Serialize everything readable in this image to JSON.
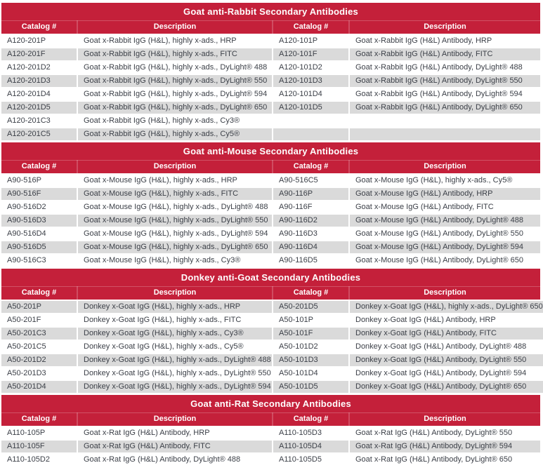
{
  "colors": {
    "header_red": "#C4203A",
    "stripe_gray": "#DADADA",
    "body_text": "#3C4048",
    "header_text": "#FFFFFF"
  },
  "column_headers": [
    "Catalog #",
    "Description",
    "Catalog #",
    "Description"
  ],
  "sections": [
    {
      "title": "Goat anti-Rabbit Secondary Antibodies",
      "rows": [
        [
          "A120-201P",
          "Goat x-Rabbit IgG (H&L), highly x-ads., HRP",
          "A120-101P",
          "Goat x-Rabbit IgG (H&L) Antibody, HRP"
        ],
        [
          "A120-201F",
          "Goat x-Rabbit IgG (H&L), highly x-ads., FITC",
          "A120-101F",
          "Goat x-Rabbit IgG (H&L) Antibody, FITC"
        ],
        [
          "A120-201D2",
          "Goat x-Rabbit IgG (H&L), highly x-ads., DyLight® 488",
          "A120-101D2",
          "Goat x-Rabbit IgG (H&L) Antibody, DyLight® 488"
        ],
        [
          "A120-201D3",
          "Goat x-Rabbit IgG (H&L), highly x-ads., DyLight® 550",
          "A120-101D3",
          "Goat x-Rabbit IgG (H&L) Antibody, DyLight® 550"
        ],
        [
          "A120-201D4",
          "Goat x-Rabbit IgG (H&L), highly x-ads., DyLight® 594",
          "A120-101D4",
          "Goat x-Rabbit IgG (H&L) Antibody, DyLight® 594"
        ],
        [
          "A120-201D5",
          "Goat x-Rabbit IgG (H&L), highly x-ads., DyLight® 650",
          "A120-101D5",
          "Goat x-Rabbit IgG (H&L) Antibody, DyLight® 650"
        ],
        [
          "A120-201C3",
          "Goat x-Rabbit IgG (H&L), highly x-ads., Cy3®",
          "",
          ""
        ],
        [
          "A120-201C5",
          "Goat x-Rabbit IgG (H&L), highly x-ads., Cy5®",
          "",
          ""
        ]
      ]
    },
    {
      "title": "Goat anti-Mouse Secondary Antibodies",
      "rows": [
        [
          "A90-516P",
          "Goat x-Mouse IgG (H&L), highly x-ads., HRP",
          "A90-516C5",
          "Goat x-Mouse IgG (H&L), highly x-ads., Cy5®"
        ],
        [
          "A90-516F",
          "Goat x-Mouse IgG (H&L), highly x-ads., FITC",
          "A90-116P",
          "Goat x-Mouse IgG (H&L) Antibody, HRP"
        ],
        [
          "A90-516D2",
          "Goat x-Mouse IgG (H&L), highly x-ads., DyLight® 488",
          "A90-116F",
          "Goat x-Mouse IgG (H&L) Antibody, FITC"
        ],
        [
          "A90-516D3",
          "Goat x-Mouse IgG (H&L), highly x-ads., DyLight® 550",
          "A90-116D2",
          "Goat x-Mouse IgG (H&L) Antibody, DyLight® 488"
        ],
        [
          "A90-516D4",
          "Goat x-Mouse IgG (H&L), highly x-ads., DyLight® 594",
          "A90-116D3",
          "Goat x-Mouse IgG (H&L) Antibody, DyLight® 550"
        ],
        [
          "A90-516D5",
          "Goat x-Mouse IgG (H&L), highly x-ads., DyLight® 650",
          "A90-116D4",
          "Goat x-Mouse IgG (H&L) Antibody, DyLight® 594"
        ],
        [
          "A90-516C3",
          "Goat x-Mouse IgG (H&L), highly x-ads., Cy3®",
          "A90-116D5",
          "Goat x-Mouse IgG (H&L) Antibody, DyLight® 650"
        ]
      ]
    },
    {
      "title": "Donkey anti-Goat Secondary Antibodies",
      "rows": [
        [
          "A50-201P",
          "Donkey x-Goat IgG (H&L), highly x-ads., HRP",
          "A50-201D5",
          "Donkey x-Goat IgG (H&L), highly x-ads., DyLight® 650"
        ],
        [
          "A50-201F",
          "Donkey x-Goat IgG (H&L), highly x-ads., FITC",
          "A50-101P",
          "Donkey x-Goat IgG (H&L) Antibody, HRP"
        ],
        [
          "A50-201C3",
          "Donkey x-Goat IgG (H&L), highly x-ads., Cy3®",
          "A50-101F",
          "Donkey x-Goat IgG (H&L) Antibody, FITC"
        ],
        [
          "A50-201C5",
          "Donkey x-Goat IgG (H&L), highly x-ads., Cy5®",
          "A50-101D2",
          "Donkey x-Goat IgG (H&L) Antibody, DyLight® 488"
        ],
        [
          "A50-201D2",
          "Donkey x-Goat IgG (H&L), highly x-ads., DyLight® 488",
          "A50-101D3",
          "Donkey x-Goat IgG (H&L) Antibody, DyLight® 550"
        ],
        [
          "A50-201D3",
          "Donkey x-Goat IgG (H&L), highly x-ads., DyLight® 550",
          "A50-101D4",
          "Donkey x-Goat IgG (H&L) Antibody, DyLight® 594"
        ],
        [
          "A50-201D4",
          "Donkey x-Goat IgG (H&L), highly x-ads., DyLight® 594",
          "A50-101D5",
          "Donkey x-Goat IgG (H&L) Antibody, DyLight® 650"
        ]
      ]
    },
    {
      "title": "Goat anti-Rat Secondary Antibodies",
      "rows": [
        [
          "A110-105P",
          "Goat x-Rat IgG (H&L) Antibody, HRP",
          "A110-105D3",
          "Goat x-Rat IgG (H&L) Antibody, DyLight® 550"
        ],
        [
          "A110-105F",
          "Goat x-Rat IgG (H&L) Antibody, FITC",
          "A110-105D4",
          "Goat x-Rat IgG (H&L) Antibody, DyLight® 594"
        ],
        [
          "A110-105D2",
          "Goat x-Rat IgG (H&L) Antibody, DyLight® 488",
          "A110-105D5",
          "Goat x-Rat IgG (H&L) Antibody, DyLight® 650"
        ]
      ]
    }
  ]
}
